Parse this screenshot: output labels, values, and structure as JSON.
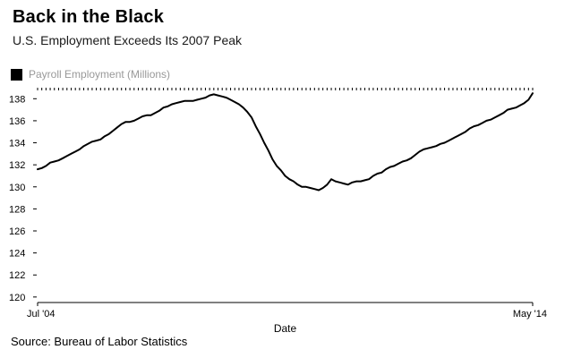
{
  "header": {
    "title": "Back in the Black",
    "subtitle": "U.S. Employment Exceeds Its 2007 Peak"
  },
  "legend": {
    "label": "Payroll Employment (Millions)",
    "swatch_color": "#000000",
    "label_color": "#999999"
  },
  "footer": {
    "source": "Source: Bureau of Labor Statistics"
  },
  "chart_data": {
    "type": "line",
    "title": "Back in the Black",
    "subtitle": "U.S. Employment Exceeds Its 2007 Peak",
    "series_name": "Payroll Employment (Millions)",
    "xlabel": "Date",
    "x_start_label": "Jul '04",
    "x_end_label": "May '14",
    "frequency": "monthly",
    "x_range": [
      "Jul 2004",
      "May 2014"
    ],
    "ylim": [
      119.5,
      139
    ],
    "yticks": [
      120,
      122,
      124,
      126,
      128,
      130,
      132,
      134,
      136,
      138
    ],
    "line_color": "#000000",
    "axis_color": "#000000",
    "grid": false,
    "legend_position": "top-left",
    "values": [
      131.6,
      131.7,
      131.9,
      132.2,
      132.3,
      132.4,
      132.6,
      132.8,
      133.0,
      133.2,
      133.4,
      133.7,
      133.9,
      134.1,
      134.2,
      134.3,
      134.6,
      134.8,
      135.1,
      135.4,
      135.7,
      135.9,
      135.9,
      136.0,
      136.2,
      136.4,
      136.5,
      136.5,
      136.7,
      136.9,
      137.2,
      137.3,
      137.5,
      137.6,
      137.7,
      137.8,
      137.8,
      137.8,
      137.9,
      138.0,
      138.1,
      138.3,
      138.4,
      138.3,
      138.2,
      138.1,
      137.9,
      137.7,
      137.5,
      137.2,
      136.8,
      136.3,
      135.5,
      134.8,
      134.0,
      133.3,
      132.5,
      131.9,
      131.5,
      131.0,
      130.7,
      130.5,
      130.2,
      130.0,
      130.0,
      129.9,
      129.8,
      129.7,
      129.9,
      130.2,
      130.7,
      130.5,
      130.4,
      130.3,
      130.2,
      130.4,
      130.5,
      130.5,
      130.6,
      130.7,
      131.0,
      131.2,
      131.3,
      131.6,
      131.8,
      131.9,
      132.1,
      132.3,
      132.4,
      132.6,
      132.9,
      133.2,
      133.4,
      133.5,
      133.6,
      133.7,
      133.9,
      134.0,
      134.2,
      134.4,
      134.6,
      134.8,
      135.0,
      135.3,
      135.5,
      135.6,
      135.8,
      136.0,
      136.1,
      136.3,
      136.5,
      136.7,
      137.0,
      137.1,
      137.2,
      137.4,
      137.6,
      137.9,
      138.5
    ]
  }
}
